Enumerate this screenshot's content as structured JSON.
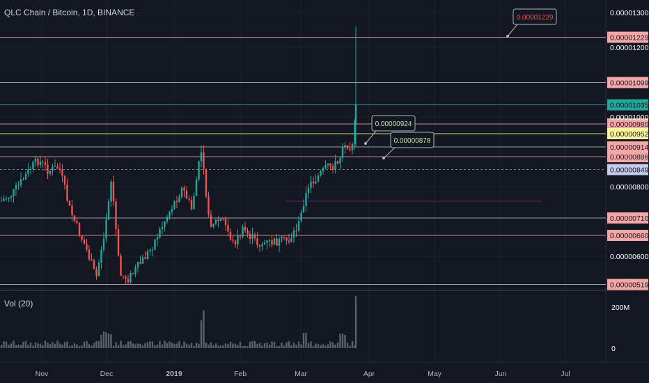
{
  "header": {
    "symbol": "QLC Chain / Bitcoin, 1D, BINANCE"
  },
  "volume_label": "Vol (20)",
  "colors": {
    "bg": "#131722",
    "up": "#26a69a",
    "down": "#ef5350",
    "grid": "#1f2433"
  },
  "chart_data": {
    "type": "candlestick",
    "title": "QLC Chain / Bitcoin, 1D, BINANCE",
    "ylim": [
      4.9e-06,
      1.34e-05
    ],
    "y_ticks": [
      "0.00001300",
      "0.00001200",
      "0.00001000",
      "0.00000800",
      "0.00000600"
    ],
    "x_ticks": [
      "Nov",
      "Dec",
      "2019",
      "Feb",
      "Mar",
      "Apr",
      "May",
      "Jun",
      "Jul"
    ],
    "horizontal_levels": [
      {
        "value": 1.229e-05,
        "label": "0.00001229",
        "color": "#ef9a9a",
        "bg": "#f4a7a7"
      },
      {
        "value": 1.099e-05,
        "label": "0.00001099",
        "color": "#b2b5be",
        "bg": "#f4a7a7"
      },
      {
        "value": 1.035e-05,
        "label": "0.00001035",
        "color": "#26a69a",
        "bg": "#26a69a"
      },
      {
        "value": 9.8e-06,
        "label": "0.00000980",
        "color": "#ef9a9a",
        "bg": "#f4a7a7"
      },
      {
        "value": 9.52e-06,
        "label": "0.00000952",
        "color": "#fff59d",
        "bg": "#fff59d"
      },
      {
        "value": 9.14e-06,
        "label": "0.00000914",
        "color": "#b2b5be",
        "bg": "#f4a7a7"
      },
      {
        "value": 8.86e-06,
        "label": "0.00000886",
        "color": "#ef9a9a",
        "bg": "#f4a7a7"
      },
      {
        "value": 8.49e-06,
        "label": "0.00000849",
        "color": "#9598a1",
        "bg": "#c5cae9"
      },
      {
        "value": 7.1e-06,
        "label": "0.00000710",
        "color": "#b2b5be",
        "bg": "#f4a7a7"
      },
      {
        "value": 6.6e-06,
        "label": "0.00000660",
        "color": "#ef9a9a",
        "bg": "#f4a7a7"
      },
      {
        "value": 5.19e-06,
        "label": "0.00000519",
        "color": "#b2b5be",
        "bg": "#f4a7a7"
      }
    ],
    "annotations": [
      {
        "label": "0.00001229",
        "value": 1.229e-05,
        "text_color": "#ef5350"
      },
      {
        "label": "0.00000924",
        "value": 9.24e-06,
        "text_color": "#c5e1a5"
      },
      {
        "label": "0.00000878",
        "value": 8.78e-06,
        "text_color": "#c5e1a5"
      }
    ],
    "volume": {
      "label": "Vol (20)",
      "y_ticks": [
        "200M",
        "0"
      ]
    }
  }
}
